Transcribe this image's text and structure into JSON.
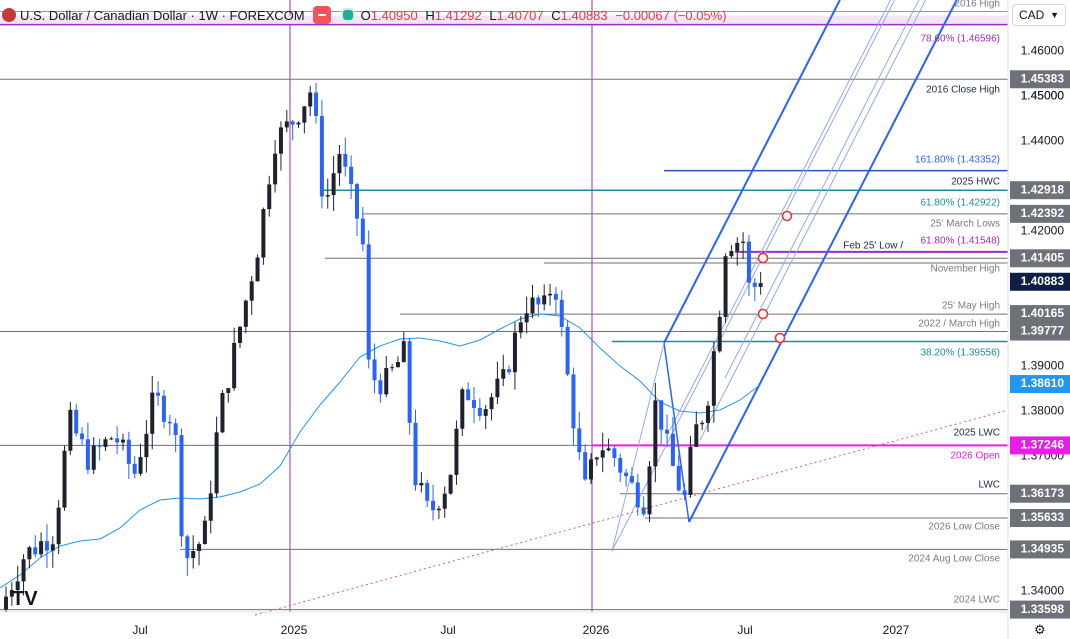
{
  "header": {
    "symbol": "U.S. Dollar / Canadian Dollar · 1W · FOREXCOM",
    "ohlc": [
      {
        "k": "O",
        "v": "1.40950"
      },
      {
        "k": "H",
        "v": "1.41292"
      },
      {
        "k": "L",
        "v": "1.40707"
      },
      {
        "k": "C",
        "v": "1.40883"
      }
    ],
    "change": "−0.00067 (−0.05%)"
  },
  "currency_selector": {
    "label": "CAD",
    "arrow": "chevron-down-icon"
  },
  "settings_icon": "settings-icon",
  "colors": {
    "bull": "#1e222d",
    "bear": "#2962ff",
    "pitchfork": "#2962ff",
    "pitchfork_inner": "#90a9f0",
    "ma": "#2196f3",
    "teal": "#1b8e9e",
    "purple": "#a02bbf",
    "magenta": "#e91ee6",
    "gray": "#6f7178",
    "trend": "#e05a6a"
  },
  "chart_data": {
    "type": "candlestick",
    "ylim": [
      1.33,
      1.4655
    ],
    "price_axis_ticks": [
      "1.46000",
      "1.45000",
      "1.44000",
      "1.42000",
      "1.39000",
      "1.38000",
      "1.37000",
      "1.34000"
    ],
    "time_axis_ticks": [
      "Jul",
      "2025",
      "Jul",
      "2026",
      "Jul",
      "2027"
    ],
    "price_labels": [
      {
        "text": "1.45383",
        "price": 1.45383,
        "style": "gray"
      },
      {
        "text": "1.45000",
        "price": 1.45,
        "style": "plain"
      },
      {
        "text": "1.42918",
        "price": 1.42918,
        "style": "gray"
      },
      {
        "text": "1.42392",
        "price": 1.42392,
        "style": "gray"
      },
      {
        "text": "1.41405",
        "price": 1.41405,
        "style": "gray"
      },
      {
        "text": "1.40883",
        "price": 1.40883,
        "style": "navy"
      },
      {
        "text": "1.40165",
        "price": 1.40165,
        "style": "gray"
      },
      {
        "text": "1.39777",
        "price": 1.39777,
        "style": "gray"
      },
      {
        "text": "1.38610",
        "price": 1.3861,
        "style": "blue"
      },
      {
        "text": "1.37246",
        "price": 1.37246,
        "style": "magenta"
      },
      {
        "text": "1.36173",
        "price": 1.36173,
        "style": "gray"
      },
      {
        "text": "1.35633",
        "price": 1.35633,
        "style": "gray"
      },
      {
        "text": "1.34935",
        "price": 1.34935,
        "style": "gray"
      },
      {
        "text": "1.33598",
        "price": 1.33598,
        "style": "gray"
      }
    ],
    "annotations": [
      {
        "text": "2016 High",
        "price": 1.4689,
        "color": "gray"
      },
      {
        "text": "78.60% (1.46596)",
        "price": 1.46596,
        "color": "purple"
      },
      {
        "text": "2016 Close High",
        "price": 1.45383,
        "color": "navy"
      },
      {
        "text": "161.80% (1.43352)",
        "price": 1.43352,
        "color": "blue"
      },
      {
        "text": "2025 HWC",
        "price": 1.42918,
        "color": "navy"
      },
      {
        "text": "61.80% (1.42922)",
        "price": 1.42922,
        "color": "teal"
      },
      {
        "text": "25' March Lows",
        "price": 1.42392,
        "color": "gray"
      },
      {
        "text": "61.80% (1.41548)",
        "price": 1.41548,
        "color": "purple"
      },
      {
        "text": "Feb 25' Low /",
        "price": 1.41548,
        "color": "navy"
      },
      {
        "text": "November High",
        "price": 1.41405,
        "color": "gray"
      },
      {
        "text": "25' May High",
        "price": 1.40165,
        "color": "gray"
      },
      {
        "text": "2022 / March High",
        "price": 1.39777,
        "color": "gray"
      },
      {
        "text": "38.20% (1.39556)",
        "price": 1.39556,
        "color": "teal"
      },
      {
        "text": "2025 LWC",
        "price": 1.37246,
        "color": "navy"
      },
      {
        "text": "2026 Open",
        "price": 1.37246,
        "color": "magenta"
      },
      {
        "text": "LWC",
        "price": 1.36173,
        "color": "navy"
      },
      {
        "text": "2026 Low Close",
        "price": 1.35633,
        "color": "gray"
      },
      {
        "text": "2024 Aug Low Close",
        "price": 1.34935,
        "color": "gray"
      },
      {
        "text": "2024 LWC",
        "price": 1.33598,
        "color": "gray"
      }
    ],
    "watermark": "TV"
  }
}
